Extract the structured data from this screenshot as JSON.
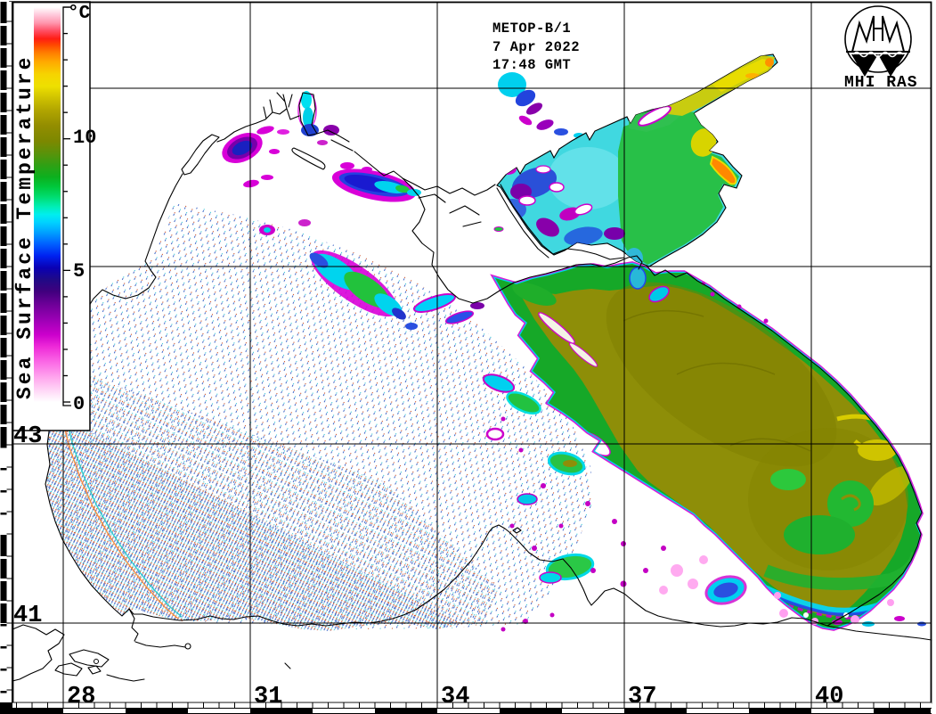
{
  "header": {
    "satellite": "METOP-B/1",
    "date": "7 Apr 2022",
    "time": "17:48 GMT"
  },
  "logo": {
    "label": "MHI RAS"
  },
  "colorbar": {
    "title": "Sea Surface Temperature",
    "unit": "°C",
    "ticks": [
      {
        "label": "10",
        "value": 10
      },
      {
        "label": "5",
        "value": 5
      },
      {
        "label": "0",
        "value": 0
      }
    ],
    "range": {
      "min": 0,
      "max": 15
    },
    "palette": [
      {
        "t": 0.0,
        "c": "#ffffff"
      },
      {
        "t": 0.03,
        "c": "#ffd6f6"
      },
      {
        "t": 0.06,
        "c": "#ffaaee"
      },
      {
        "t": 0.1,
        "c": "#fb6ae6"
      },
      {
        "t": 0.14,
        "c": "#ee2ad8"
      },
      {
        "t": 0.17,
        "c": "#cc00cc"
      },
      {
        "t": 0.21,
        "c": "#9a00b4"
      },
      {
        "t": 0.25,
        "c": "#6a0096"
      },
      {
        "t": 0.28,
        "c": "#40007e"
      },
      {
        "t": 0.31,
        "c": "#200a86"
      },
      {
        "t": 0.34,
        "c": "#0a00b4"
      },
      {
        "t": 0.37,
        "c": "#0022f0"
      },
      {
        "t": 0.4,
        "c": "#0060ff"
      },
      {
        "t": 0.43,
        "c": "#00a2ff"
      },
      {
        "t": 0.455,
        "c": "#00d2ff"
      },
      {
        "t": 0.475,
        "c": "#00eeee"
      },
      {
        "t": 0.495,
        "c": "#00eeb4"
      },
      {
        "t": 0.52,
        "c": "#00dc6e"
      },
      {
        "t": 0.545,
        "c": "#00c83c"
      },
      {
        "t": 0.57,
        "c": "#0cb01e"
      },
      {
        "t": 0.6,
        "c": "#30a014"
      },
      {
        "t": 0.63,
        "c": "#5a920a"
      },
      {
        "t": 0.66,
        "c": "#7c8800"
      },
      {
        "t": 0.7,
        "c": "#938d00"
      },
      {
        "t": 0.74,
        "c": "#b2a600"
      },
      {
        "t": 0.77,
        "c": "#cfc200"
      },
      {
        "t": 0.8,
        "c": "#eee000"
      },
      {
        "t": 0.83,
        "c": "#f6d400"
      },
      {
        "t": 0.86,
        "c": "#ffac00"
      },
      {
        "t": 0.885,
        "c": "#ff7c00"
      },
      {
        "t": 0.905,
        "c": "#ff4600"
      },
      {
        "t": 0.92,
        "c": "#ff1e14"
      },
      {
        "t": 0.94,
        "c": "#ff4e64"
      },
      {
        "t": 0.96,
        "c": "#ff96ae"
      },
      {
        "t": 0.98,
        "c": "#ffc8da"
      },
      {
        "t": 1.0,
        "c": "#ffffff"
      }
    ]
  },
  "map": {
    "lat_labels": [
      {
        "label": "43",
        "lat": 43
      },
      {
        "label": "41",
        "lat": 41
      }
    ],
    "lon_labels": [
      {
        "label": "28",
        "lon": 28
      },
      {
        "label": "31",
        "lon": 31
      },
      {
        "label": "34",
        "lon": 34
      },
      {
        "label": "37",
        "lon": 37
      },
      {
        "label": "40",
        "lon": 40
      }
    ],
    "colors": {
      "warm_olive_core": "#8e8e08",
      "green_margin": "#16a828",
      "cold_cyan_fringe": "#00d2ee",
      "cloud_edge_magenta": "#cc00cc",
      "azov_base_cyan": "#40d8e0",
      "no_data_hatch": [
        "#4068c8",
        "#cc4a1e",
        "#2cc4d4"
      ]
    }
  }
}
